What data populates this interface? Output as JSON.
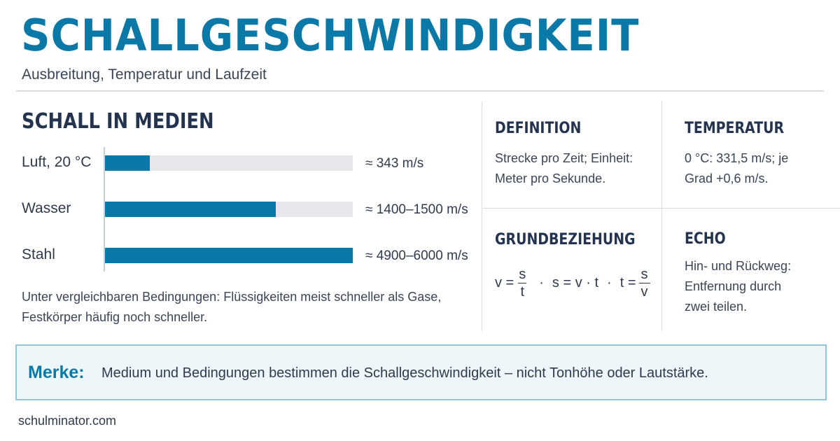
{
  "header": {
    "title": "SCHALLGESCHWINDIGKEIT",
    "subtitle": "Ausbreitung, Temperatur und Laufzeit"
  },
  "media": {
    "title": "SCHALL IN MEDIEN",
    "rows": [
      {
        "label": "Luft, 20 °C",
        "value": "≈ 343 m/s",
        "fill": 0.18
      },
      {
        "label": "Wasser",
        "value": "≈ 1400–1500 m/s",
        "fill": 0.69
      },
      {
        "label": "Stahl",
        "value": "≈ 4900–6000 m/s",
        "fill": 1.0
      }
    ],
    "note": "Unter vergleichbaren Bedingungen: Flüssigkeiten meist schneller als Gase, Festkörper häufig noch schneller."
  },
  "cards": {
    "definition": {
      "title": "DEFINITION",
      "text": "Strecke pro Zeit; Einheit: Meter pro Sekunde."
    },
    "temperature": {
      "title": "TEMPERATUR",
      "text": "0 °C: 331,5 m/s; je Grad +0,6 m/s."
    },
    "relation": {
      "title": "GRUNDBEZIEHUNG",
      "f1_lhs": "v =",
      "f1_num": "s",
      "f1_den": "t",
      "separator": "·",
      "f2": "s = v · t",
      "f3_lhs": "t =",
      "f3_num": "s",
      "f3_den": "v"
    },
    "echo": {
      "title": "ECHO",
      "text": "Hin- und Rückweg: Entfernung durch zwei teilen."
    }
  },
  "merke": {
    "label": "Merke:",
    "text": "Medium und Bedingungen bestimmen die Schallgeschwindigkeit – nicht Tonhöhe oder Lautstärke."
  },
  "footer": {
    "source": "schulminator.com"
  },
  "colors": {
    "accent": "#0b79a8",
    "heading": "#24344f",
    "track": "#e5e7ea",
    "merke_bg": "#edf7fa",
    "merke_border": "#8fc7d9"
  }
}
